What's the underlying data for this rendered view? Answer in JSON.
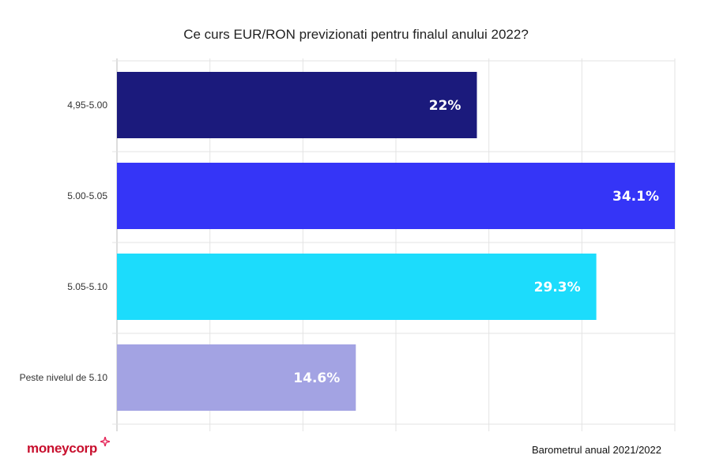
{
  "chart_data": {
    "type": "bar",
    "orientation": "horizontal",
    "title": "Ce curs EUR/RON previzionati pentru finalul anului 2022?",
    "categories": [
      "4,95-5.00",
      "5.00-5.05",
      "5.05-5.10",
      "Peste nivelul de 5.10"
    ],
    "values": [
      22,
      34.1,
      29.3,
      14.6
    ],
    "value_labels": [
      "22%",
      "34.1%",
      "29.3%",
      "14.6%"
    ],
    "colors": [
      "#1b1a7c",
      "#3535f7",
      "#1cdcfc",
      "#a3a3e3"
    ],
    "xlim": [
      0,
      34.1
    ],
    "grid": true
  },
  "footer": {
    "brand_part1": "money",
    "brand_part2": "corp",
    "source": "Barometrul anual 2021/2022"
  },
  "icons": {
    "brand": "sparkle-icon"
  }
}
